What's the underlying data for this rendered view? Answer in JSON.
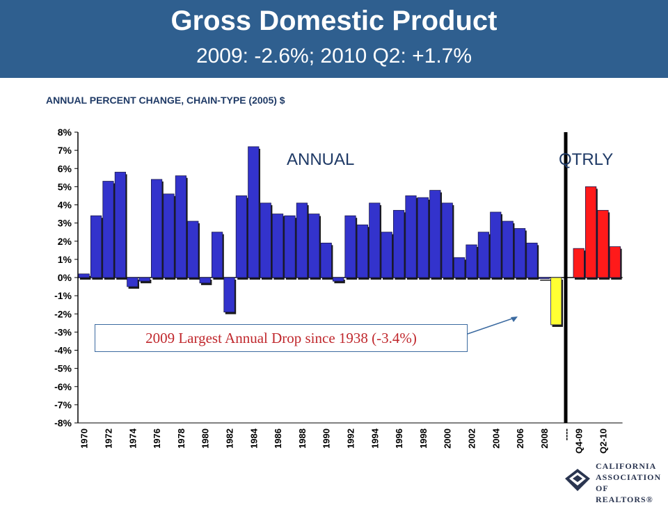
{
  "header": {
    "title": "Gross Domestic Product",
    "subtitle": "2009: -2.6%; 2010 Q2: +1.7%"
  },
  "chart_label": "ANNUAL PERCENT CHANGE, CHAIN-TYPE (2005) $",
  "annotation": "2009 Largest Annual Drop since 1938 (-3.4%)",
  "logo": {
    "line1": "CALIFORNIA",
    "line2": "ASSOCIATION",
    "line3": "OF REALTORS®"
  },
  "colors": {
    "header_bg": "#2f5f8f",
    "annual_bar": "#3333cc",
    "highlight_bar": "#ffff33",
    "quarterly_bar": "#ff1a1a"
  },
  "chart_data": {
    "type": "bar",
    "section_labels": [
      "ANNUAL",
      "QTRLY"
    ],
    "y_ticks": [
      "8%",
      "7%",
      "6%",
      "5%",
      "4%",
      "3%",
      "2%",
      "1%",
      "0%",
      "-1%",
      "-2%",
      "-3%",
      "-4%",
      "-5%",
      "-6%",
      "-7%",
      "-8%"
    ],
    "ylim": [
      -8,
      8
    ],
    "annual": {
      "years": [
        1970,
        1971,
        1972,
        1973,
        1974,
        1975,
        1976,
        1977,
        1978,
        1979,
        1980,
        1981,
        1982,
        1983,
        1984,
        1985,
        1986,
        1987,
        1988,
        1989,
        1990,
        1991,
        1992,
        1993,
        1994,
        1995,
        1996,
        1997,
        1998,
        1999,
        2000,
        2001,
        2002,
        2003,
        2004,
        2005,
        2006,
        2007,
        2008,
        2009
      ],
      "values": [
        0.2,
        3.4,
        5.3,
        5.8,
        -0.5,
        -0.2,
        5.4,
        4.6,
        5.6,
        3.1,
        -0.3,
        2.5,
        -1.9,
        4.5,
        7.2,
        4.1,
        3.5,
        3.4,
        4.1,
        3.5,
        1.9,
        -0.2,
        3.4,
        2.9,
        4.1,
        2.5,
        3.7,
        4.5,
        4.4,
        4.8,
        4.1,
        1.1,
        1.8,
        2.5,
        3.6,
        3.1,
        2.7,
        1.9,
        0.0,
        -2.6
      ],
      "x_tick_labels": [
        "1970",
        "1972",
        "1974",
        "1976",
        "1978",
        "1980",
        "1982",
        "1984",
        "1986",
        "1988",
        "1990",
        "1992",
        "1994",
        "1996",
        "1998",
        "2000",
        "2002",
        "2004",
        "2006",
        "2008"
      ]
    },
    "quarterly": {
      "values": [
        1.6,
        5.0,
        3.7,
        1.7
      ],
      "x_tick_labels": [
        "Q4-09",
        "Q2-10"
      ]
    },
    "separator_tick_label": "----",
    "grid": false
  }
}
